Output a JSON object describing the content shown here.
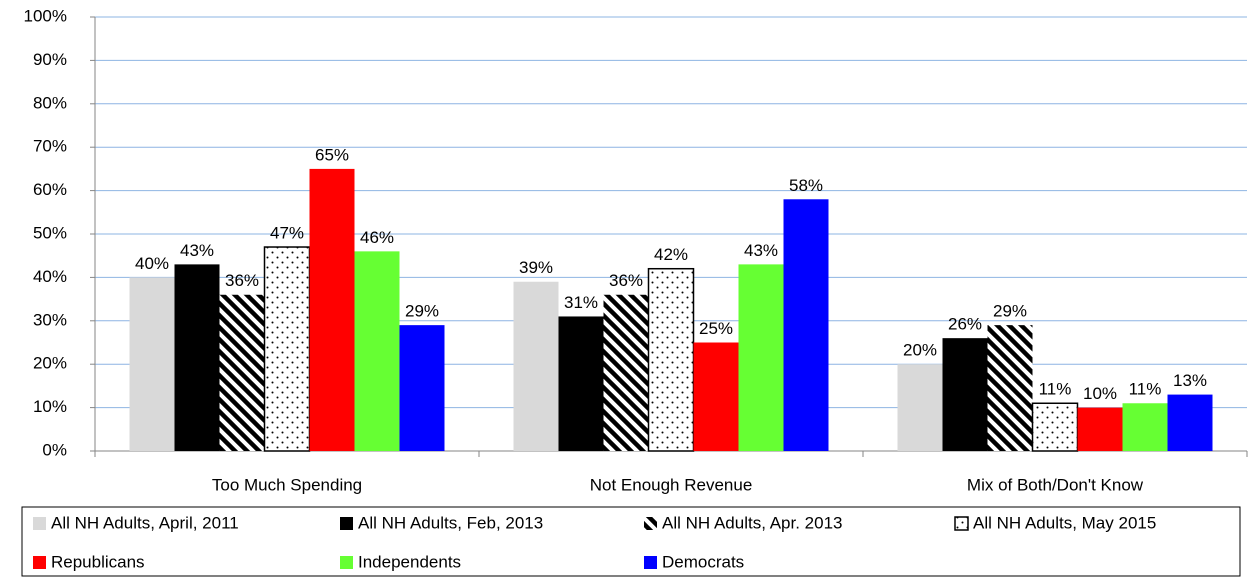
{
  "chart_data": {
    "type": "bar",
    "categories": [
      "Too Much Spending",
      "Not Enough Revenue",
      "Mix of Both/Don't Know"
    ],
    "series": [
      {
        "name": "All NH Adults, April, 2011",
        "color": "#d9d9d9",
        "values": [
          40,
          39,
          20
        ],
        "value_labels": [
          "40%",
          "39%",
          "20%"
        ]
      },
      {
        "name": "All NH Adults, Feb, 2013",
        "color": "#000000",
        "values": [
          43,
          31,
          26
        ],
        "value_labels": [
          "43%",
          "31%",
          "26%"
        ]
      },
      {
        "name": "All NH Adults, Apr. 2013",
        "color": "#000000",
        "pattern": "diagonal-stripes",
        "values": [
          36,
          36,
          29
        ],
        "value_labels": [
          "36%",
          "36%",
          "29%"
        ]
      },
      {
        "name": "All NH Adults, May 2015",
        "color": "#000000",
        "pattern": "dots",
        "values": [
          47,
          42,
          11
        ],
        "value_labels": [
          "47%",
          "42%",
          "11%"
        ]
      },
      {
        "name": "Republicans",
        "color": "#ff0000",
        "values": [
          65,
          25,
          10
        ],
        "value_labels": [
          "65%",
          "25%",
          "10%"
        ]
      },
      {
        "name": "Independents",
        "color": "#66ff33",
        "values": [
          46,
          43,
          11
        ],
        "value_labels": [
          "46%",
          "43%",
          "11%"
        ]
      },
      {
        "name": "Democrats",
        "color": "#0000ff",
        "values": [
          29,
          58,
          13
        ],
        "value_labels": [
          "29%",
          "58%",
          "13%"
        ]
      }
    ],
    "ylim": [
      0,
      100
    ],
    "yticks": [
      {
        "value": 0,
        "label": "0%"
      },
      {
        "value": 10,
        "label": "10%"
      },
      {
        "value": 20,
        "label": "20%"
      },
      {
        "value": 30,
        "label": "30%"
      },
      {
        "value": 40,
        "label": "40%"
      },
      {
        "value": 50,
        "label": "50%"
      },
      {
        "value": 60,
        "label": "60%"
      },
      {
        "value": 70,
        "label": "70%"
      },
      {
        "value": 80,
        "label": "80%"
      },
      {
        "value": 90,
        "label": "90%"
      },
      {
        "value": 100,
        "label": "100%"
      }
    ],
    "grid": true,
    "legend": "bottom"
  }
}
